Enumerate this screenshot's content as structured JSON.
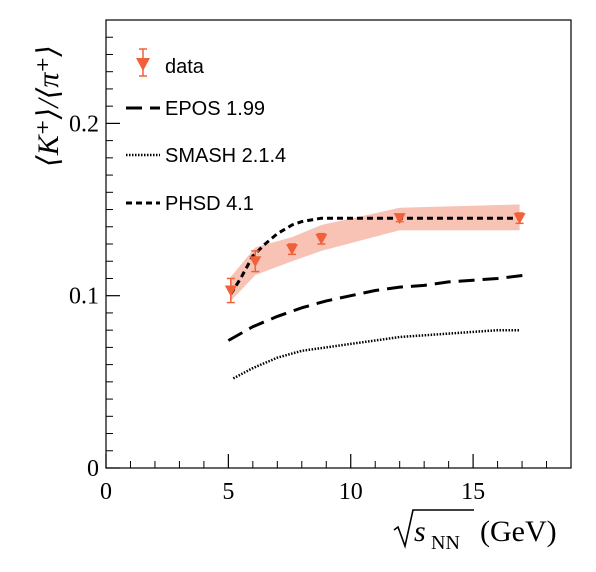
{
  "chart_data": {
    "type": "scatter",
    "xlabel": {
      "text": "s",
      "subscript": "NN",
      "unit": "(GeV)",
      "sqrt": true
    },
    "ylabel": "⟨K⁺⟩/⟨π⁺⟩",
    "xlim": [
      0,
      19
    ],
    "ylim": [
      0,
      0.26
    ],
    "x_ticks": [
      0,
      5,
      10,
      15
    ],
    "x_tick_labels": [
      "0",
      "5",
      "10",
      "15"
    ],
    "y_ticks": [
      0,
      0.1,
      0.2
    ],
    "y_tick_labels": [
      "0",
      "0.1",
      "0.2"
    ],
    "grid": false,
    "legend_position": "top-left",
    "colors": {
      "data": "#f0613a",
      "band": "#f7b7a8",
      "lines": "#000000"
    },
    "series": [
      {
        "name": "data",
        "kind": "markers-with-errors",
        "x": [
          5.1,
          6.1,
          7.6,
          8.8,
          12.0,
          16.9
        ],
        "y": [
          0.103,
          0.12,
          0.127,
          0.133,
          0.145,
          0.145
        ],
        "yerr": [
          0.007,
          0.006,
          0.003,
          0.003,
          0.002,
          0.003
        ],
        "band_x": [
          5.1,
          6.1,
          7.6,
          8.8,
          12.0,
          16.9
        ],
        "band_low": [
          0.097,
          0.112,
          0.12,
          0.126,
          0.138,
          0.138
        ],
        "band_high": [
          0.111,
          0.128,
          0.134,
          0.141,
          0.151,
          0.153
        ]
      },
      {
        "name": "EPOS 1.99",
        "kind": "line",
        "dash": "long-dash",
        "x": [
          5.0,
          6.0,
          7.0,
          8.0,
          9.0,
          10.0,
          11.0,
          12.0,
          13.0,
          14.0,
          15.0,
          16.0,
          17.2
        ],
        "y": [
          0.074,
          0.082,
          0.088,
          0.093,
          0.097,
          0.1,
          0.103,
          0.105,
          0.106,
          0.108,
          0.109,
          0.11,
          0.112
        ]
      },
      {
        "name": "SMASH 2.1.4",
        "kind": "line",
        "dash": "dotted",
        "x": [
          5.2,
          6.0,
          7.0,
          8.0,
          9.0,
          10.0,
          11.0,
          12.0,
          13.0,
          14.0,
          15.0,
          16.0,
          16.9
        ],
        "y": [
          0.052,
          0.058,
          0.064,
          0.068,
          0.07,
          0.072,
          0.074,
          0.076,
          0.077,
          0.078,
          0.079,
          0.08,
          0.08
        ]
      },
      {
        "name": "PHSD 4.1",
        "kind": "line",
        "dash": "short-dash",
        "x": [
          5.1,
          5.5,
          6.0,
          6.5,
          7.0,
          7.6,
          8.0,
          8.8,
          10.0,
          12.0,
          14.0,
          16.9
        ],
        "y": [
          0.101,
          0.11,
          0.123,
          0.13,
          0.136,
          0.141,
          0.143,
          0.145,
          0.145,
          0.145,
          0.145,
          0.145
        ]
      }
    ]
  }
}
